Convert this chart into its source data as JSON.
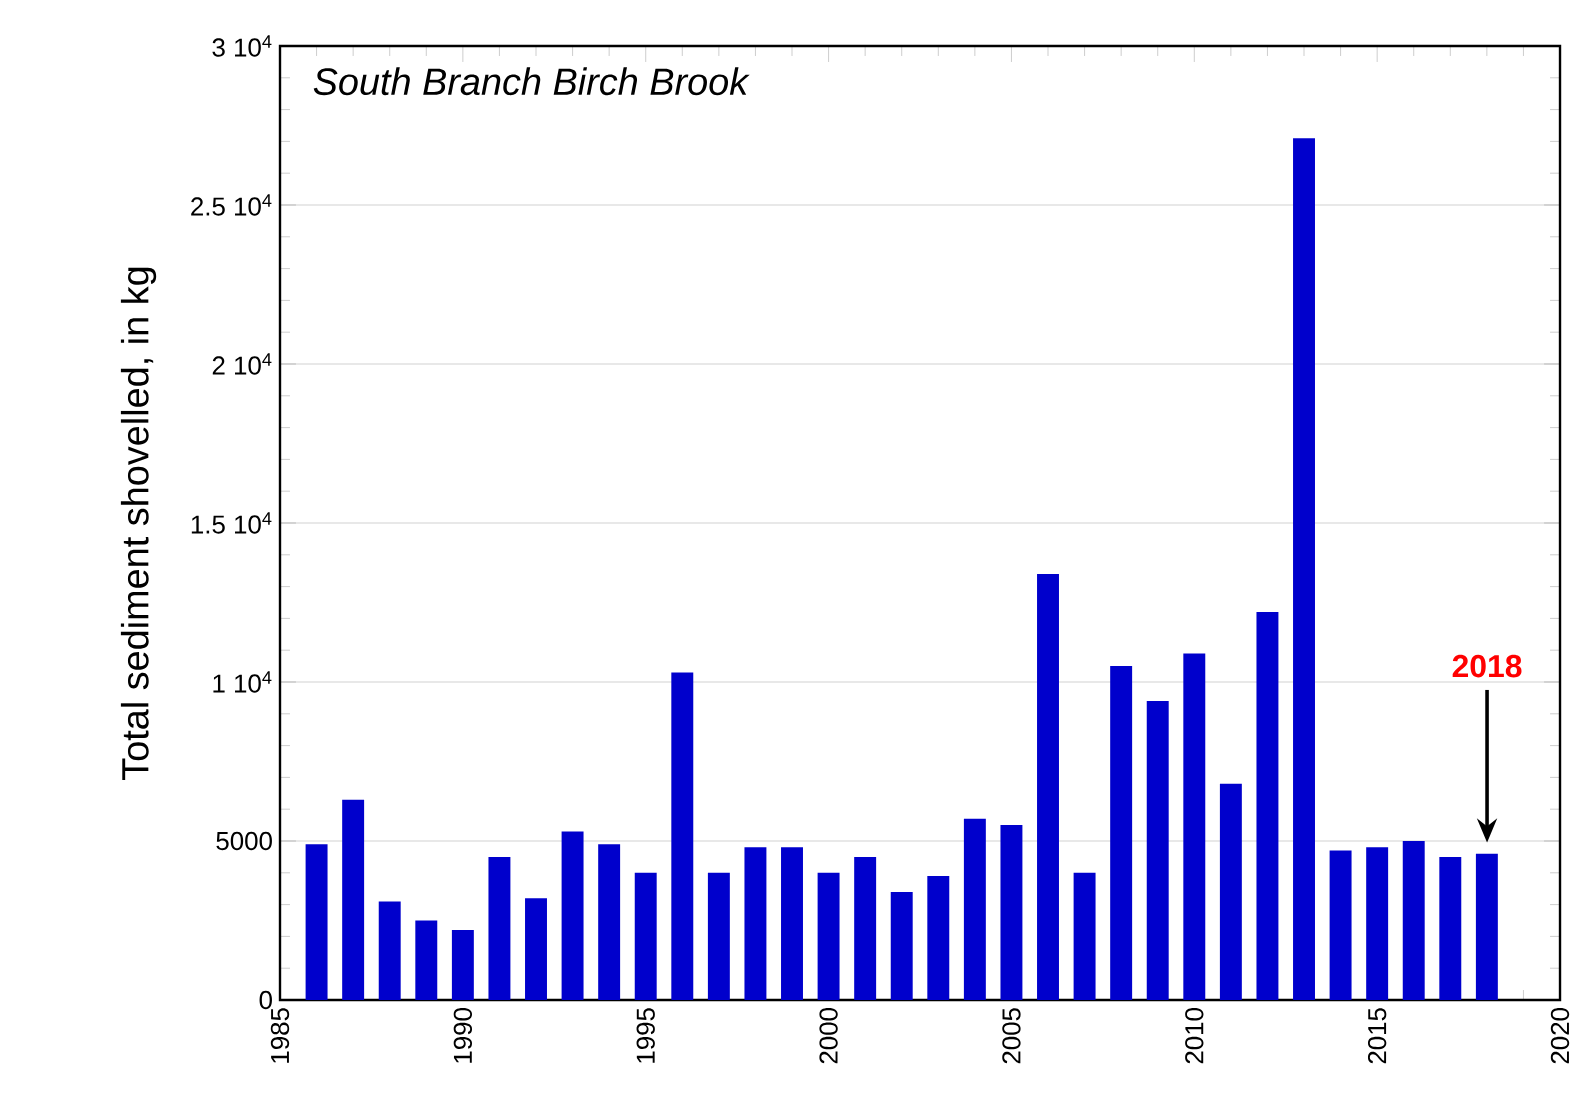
{
  "chart_data": {
    "type": "bar",
    "title": "South Branch Birch Brook",
    "ylabel": "Total sediment shovelled, in kg",
    "x": [
      1986,
      1987,
      1988,
      1989,
      1990,
      1991,
      1992,
      1993,
      1994,
      1995,
      1996,
      1997,
      1998,
      1999,
      2000,
      2001,
      2002,
      2003,
      2004,
      2005,
      2006,
      2007,
      2008,
      2009,
      2010,
      2011,
      2012,
      2013,
      2014,
      2015,
      2016,
      2017,
      2018
    ],
    "values": [
      4900,
      6300,
      3100,
      2500,
      2200,
      4500,
      3200,
      5300,
      4900,
      4000,
      10300,
      4000,
      4800,
      4800,
      4000,
      4500,
      3400,
      3900,
      5700,
      5500,
      13400,
      4000,
      10500,
      9400,
      10900,
      6800,
      12200,
      27100,
      4700,
      4800,
      5000,
      4500,
      4600
    ],
    "color": "#0000cc",
    "xlim": [
      1985,
      2020
    ],
    "xticks": [
      1985,
      1990,
      1995,
      2000,
      2005,
      2010,
      2015,
      2020
    ],
    "ylim": [
      0,
      30000
    ],
    "yticks": [
      0,
      5000,
      {
        "value": 10000,
        "label": "1 10$^{4}$"
      },
      {
        "value": 15000,
        "label": "1.5 10$^{4}$"
      },
      {
        "value": 20000,
        "label": "2 10$^{4}$"
      },
      {
        "value": 25000,
        "label": "2.5 10$^{4}$"
      },
      {
        "value": 30000,
        "label": "3 10$^{4}$"
      }
    ],
    "grid": "y",
    "annotations": [
      "2018"
    ]
  }
}
